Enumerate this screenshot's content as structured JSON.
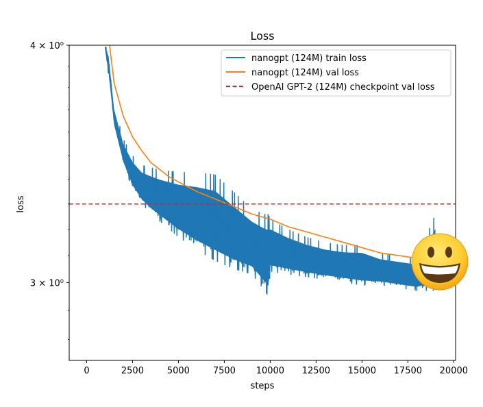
{
  "chart_data": {
    "type": "line",
    "title": "Loss",
    "xlabel": "steps",
    "ylabel": "loss",
    "yscale": "log",
    "xlim": [
      -950,
      20100
    ],
    "ylim": [
      2.73,
      4.0
    ],
    "x_ticks": [
      0,
      2500,
      5000,
      7500,
      10000,
      12500,
      15000,
      17500,
      20000
    ],
    "y_ticks": [
      {
        "value": 3.0,
        "label": "3 × 10⁰"
      },
      {
        "value": 4.0,
        "label": "4 × 10⁰"
      }
    ],
    "legend_position": "top-right",
    "grid": false,
    "series": [
      {
        "name": "nanogpt (124M) train loss",
        "color": "#1f77b4",
        "style": "solid",
        "x": [
          1000,
          1200,
          1500,
          2000,
          2500,
          3000,
          3500,
          4000,
          5000,
          6000,
          7000,
          8000,
          9000,
          9700,
          9900,
          10000,
          11000,
          12000,
          13000,
          14000,
          15000,
          16000,
          17000,
          18000,
          19000
        ],
        "upper": [
          4.0,
          3.97,
          3.72,
          3.57,
          3.5,
          3.46,
          3.45,
          3.44,
          3.43,
          3.43,
          3.42,
          3.35,
          3.28,
          3.26,
          3.26,
          3.24,
          3.2,
          3.17,
          3.15,
          3.14,
          3.14,
          3.11,
          3.1,
          3.09,
          3.26
        ],
        "lower": [
          3.98,
          3.85,
          3.62,
          3.46,
          3.36,
          3.3,
          3.26,
          3.23,
          3.17,
          3.12,
          3.08,
          3.05,
          3.03,
          2.97,
          2.95,
          3.04,
          3.03,
          3.02,
          3.01,
          3.0,
          2.99,
          2.99,
          2.98,
          2.97,
          2.97
        ]
      },
      {
        "name": "nanogpt (124M) val loss",
        "color": "#ff7f0e",
        "style": "solid",
        "x": [
          1250,
          1500,
          2000,
          2500,
          3000,
          3500,
          4000,
          4500,
          5000,
          6000,
          7000,
          8000,
          9000,
          10000,
          11000,
          12000,
          13000,
          14000,
          15000,
          16000,
          17000,
          18000,
          18500
        ],
        "y": [
          4.0,
          3.82,
          3.67,
          3.58,
          3.52,
          3.47,
          3.44,
          3.41,
          3.39,
          3.35,
          3.32,
          3.29,
          3.26,
          3.24,
          3.21,
          3.19,
          3.17,
          3.15,
          3.13,
          3.11,
          3.1,
          3.09,
          3.085
        ]
      },
      {
        "name": "OpenAI GPT-2 (124M) checkpoint val loss",
        "color": "#d62728",
        "style": "dashed",
        "y": 3.3
      }
    ]
  },
  "decoration": {
    "emoji": "😀",
    "emoji_name": "grinning-face"
  }
}
